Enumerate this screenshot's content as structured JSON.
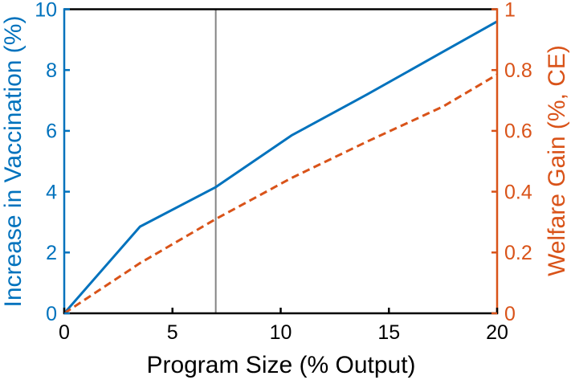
{
  "figure": {
    "background": "#ffffff"
  },
  "chart_data": {
    "type": "line",
    "title": "",
    "xlabel": "Program Size (% Output)",
    "xlim": [
      0,
      20
    ],
    "x_ticks": [
      0,
      5,
      10,
      15,
      20
    ],
    "x_tick_color": "#000000",
    "grid": false,
    "legend": null,
    "left_axis": {
      "label": "Increase in Vaccination (%)",
      "color": "#0072BD",
      "ylim": [
        0,
        10
      ],
      "ticks": [
        0,
        2,
        4,
        6,
        8,
        10
      ]
    },
    "right_axis": {
      "label": "Welfare Gain (%, CE)",
      "color": "#D95319",
      "ylim": [
        0,
        1
      ],
      "ticks": [
        0,
        0.2,
        0.4,
        0.6,
        0.8,
        1
      ]
    },
    "series": [
      {
        "name": "Increase in Vaccination",
        "axis": "left",
        "style": "solid",
        "color": "#0072BD",
        "x": [
          0,
          3.5,
          7,
          10.5,
          14,
          17.5,
          20
        ],
        "y": [
          0,
          2.85,
          4.15,
          5.85,
          7.2,
          8.6,
          9.6
        ]
      },
      {
        "name": "Welfare Gain",
        "axis": "right",
        "style": "dashed",
        "color": "#D95319",
        "x": [
          0,
          3.5,
          7,
          10.5,
          14,
          17.5,
          20
        ],
        "y": [
          0,
          0.165,
          0.31,
          0.445,
          0.565,
          0.68,
          0.785
        ]
      }
    ],
    "vline": {
      "x": 7,
      "color": "#848484"
    }
  }
}
